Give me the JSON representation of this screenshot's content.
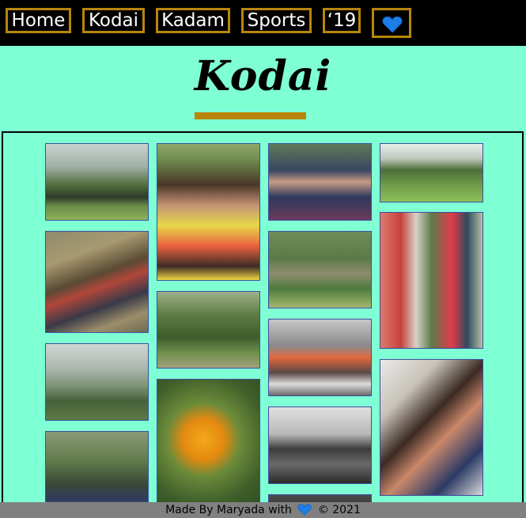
{
  "nav": {
    "items": [
      {
        "label": "Home"
      },
      {
        "label": "Kodai"
      },
      {
        "label": "Kadam"
      },
      {
        "label": "Sports"
      },
      {
        "label": "‘19"
      }
    ],
    "heart_icon": "blue-heart-icon",
    "border_color": "#b8860b",
    "background": "#000000"
  },
  "page": {
    "title": "Kodai",
    "background": "#7fffd4",
    "accent": "#b8860b"
  },
  "footer": {
    "prefix": "Made By Maryada with",
    "suffix": "© 2021",
    "heart_icon": "blue-heart-icon",
    "background": "#808080"
  },
  "gallery": {
    "photo_count": 15
  }
}
